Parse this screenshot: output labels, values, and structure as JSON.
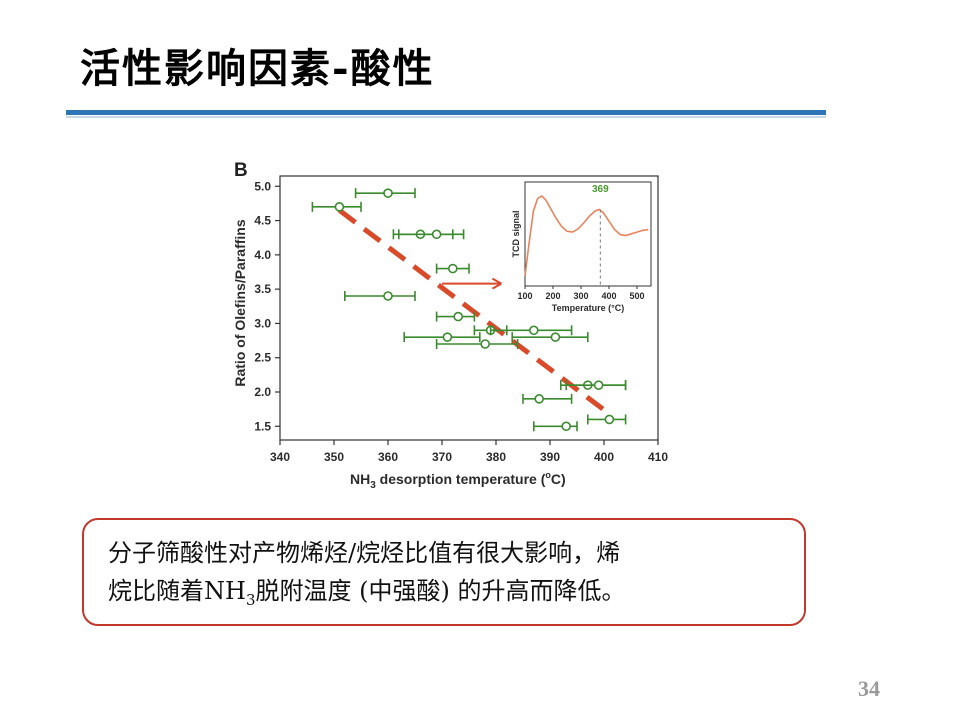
{
  "slide": {
    "title": "活性影响因素-酸性",
    "page_number": "34"
  },
  "caption": {
    "line1": "分子筛酸性对产物烯烃/烷烃比值有很大影响，烯",
    "line2_a": "烷比随着NH",
    "line2_sub": "3",
    "line2_b": "脱附温度 (中强酸) 的升高而降低。"
  },
  "chart_data": [
    {
      "type": "scatter",
      "panel_label": "B",
      "xlabel_main": "NH",
      "xlabel_sub": "3",
      "xlabel_rest": " desorption temperature (",
      "xlabel_sup": "o",
      "xlabel_end": "C)",
      "ylabel": "Ratio of Olefins/Paraffins",
      "xlim": [
        340,
        410
      ],
      "ylim": [
        1.3,
        5.15
      ],
      "xticks": [
        340,
        350,
        360,
        370,
        380,
        390,
        400,
        410
      ],
      "yticks": [
        1.5,
        2.0,
        2.5,
        3.0,
        3.5,
        4.0,
        4.5,
        5.0
      ],
      "ytick_labels": [
        "1.5",
        "2.0",
        "2.5",
        "3.0",
        "3.5",
        "4.0",
        "4.5",
        "5.0"
      ],
      "marker_color": "#3a8a2e",
      "trend_color": "#d94a2a",
      "points": [
        {
          "x": 360,
          "y": 4.9,
          "xerr_low": 354,
          "xerr_high": 365
        },
        {
          "x": 351,
          "y": 4.7,
          "xerr_low": 346,
          "xerr_high": 355
        },
        {
          "x": 366,
          "y": 4.3,
          "xerr_low": 361,
          "xerr_high": 372
        },
        {
          "x": 369,
          "y": 4.3,
          "xerr_low": 362,
          "xerr_high": 374
        },
        {
          "x": 372,
          "y": 3.8,
          "xerr_low": 369,
          "xerr_high": 375
        },
        {
          "x": 360,
          "y": 3.4,
          "xerr_low": 352,
          "xerr_high": 365
        },
        {
          "x": 373,
          "y": 3.1,
          "xerr_low": 369,
          "xerr_high": 376
        },
        {
          "x": 379,
          "y": 2.9,
          "xerr_low": 376,
          "xerr_high": 382
        },
        {
          "x": 387,
          "y": 2.9,
          "xerr_low": 379,
          "xerr_high": 394
        },
        {
          "x": 371,
          "y": 2.8,
          "xerr_low": 363,
          "xerr_high": 377
        },
        {
          "x": 391,
          "y": 2.8,
          "xerr_low": 383,
          "xerr_high": 397
        },
        {
          "x": 378,
          "y": 2.7,
          "xerr_low": 369,
          "xerr_high": 384
        },
        {
          "x": 397,
          "y": 2.1,
          "xerr_low": 392,
          "xerr_high": 404
        },
        {
          "x": 399,
          "y": 2.1,
          "xerr_low": 393,
          "xerr_high": 404
        },
        {
          "x": 388,
          "y": 1.9,
          "xerr_low": 385,
          "xerr_high": 394
        },
        {
          "x": 401,
          "y": 1.6,
          "xerr_low": 397,
          "xerr_high": 404
        },
        {
          "x": 393,
          "y": 1.5,
          "xerr_low": 387,
          "xerr_high": 395
        }
      ],
      "trend_line": {
        "x": [
          351,
          401
        ],
        "y": [
          4.65,
          1.68
        ]
      },
      "arrow": {
        "x": [
          370,
          381
        ],
        "y": [
          3.58,
          3.58
        ]
      }
    },
    {
      "type": "line",
      "xlabel": "Temperature (°C)",
      "ylabel": "TCD signal",
      "xlim": [
        100,
        550
      ],
      "xticks": [
        100,
        200,
        300,
        400,
        500
      ],
      "peak_label": "369",
      "peak_x": 369,
      "line_color": "#e8845a",
      "peak_label_color": "#4a9a2e",
      "x": [
        100,
        115,
        130,
        145,
        160,
        175,
        190,
        210,
        230,
        250,
        270,
        290,
        310,
        330,
        350,
        365,
        380,
        400,
        420,
        440,
        460,
        480,
        500,
        520,
        540
      ],
      "y": [
        0.05,
        0.45,
        0.82,
        0.97,
        1.0,
        0.95,
        0.86,
        0.74,
        0.64,
        0.58,
        0.57,
        0.61,
        0.68,
        0.76,
        0.82,
        0.84,
        0.8,
        0.7,
        0.6,
        0.54,
        0.53,
        0.55,
        0.57,
        0.59,
        0.6
      ]
    }
  ]
}
